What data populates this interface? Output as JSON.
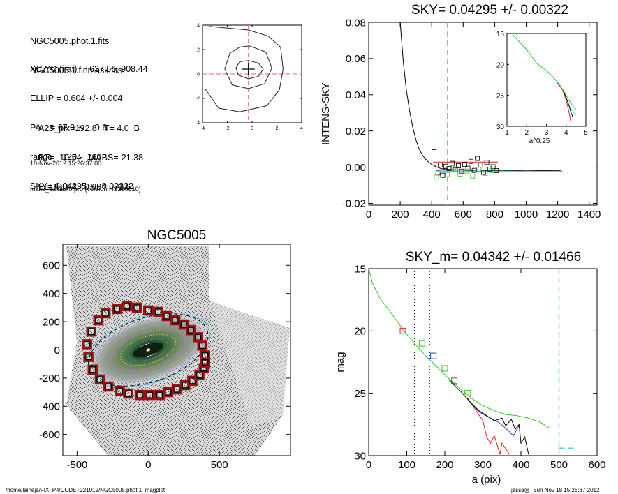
{
  "header_info": {
    "files": [
      "NGC5005.phot.1.fits",
      "NGC5005.1.finmask.fits"
    ],
    "params": [
      "XC,YC (iraf)=   637.55, 908.44",
      "ELLIP = 0.604 +/- 0.004",
      "PA    = 67.0 +/-   0.6",
      "range=  120.-  160.",
      "SKY= 0.04295 +/- 0.00322"
    ],
    "results": [
      "A25_pix=192.8   T= 4.0  B",
      "BT=  10.54   MABS=-21.38",
      "ELLIP, PA= 0.684   71.6"
    ],
    "timestamp": "18-Nov-2012 15:26:37.00",
    "program": "make_datalist0.pro (version HS230610)"
  },
  "footer": {
    "path": "/home/laineja/FIX_P4/UUDET221012/NGC5005.phot.1_magplot",
    "user_time": "jasse@  Sun Nov 18 15:26:37 2012"
  },
  "colors": {
    "dash_red": "#e36a6a",
    "dash_cyan": "#5ad0e8",
    "green": "#35c435",
    "red": "#e02020",
    "blue": "#2040d0",
    "black": "#000000",
    "marker_red": "#a01010"
  },
  "chart_data": [
    {
      "id": "contour",
      "type": "line",
      "title": "",
      "xlim": [
        -4,
        4
      ],
      "ylim": [
        -4,
        4
      ],
      "xticks": [
        "-4",
        "-2",
        "0",
        "2",
        "4"
      ],
      "yticks": [
        "-4",
        "-2",
        "0",
        "2",
        "4"
      ],
      "center": [
        -0.3,
        0.4
      ],
      "contours": [
        [
          [
            -0.3,
            1.1
          ],
          [
            0.5,
            0.9
          ],
          [
            0.9,
            0.4
          ],
          [
            0.5,
            -0.2
          ],
          [
            -0.3,
            -0.4
          ],
          [
            -1.1,
            -0.1
          ],
          [
            -1.3,
            0.5
          ],
          [
            -1.0,
            1.0
          ]
        ],
        [
          [
            -0.2,
            2.3
          ],
          [
            1.1,
            1.8
          ],
          [
            1.6,
            0.5
          ],
          [
            1.0,
            -0.8
          ],
          [
            -0.3,
            -1.2
          ],
          [
            -1.6,
            -0.9
          ],
          [
            -2.2,
            0.4
          ],
          [
            -1.8,
            1.7
          ],
          [
            -1.0,
            2.2
          ]
        ],
        [
          [
            -3.5,
            3.9
          ],
          [
            -0.3,
            3.6
          ],
          [
            1.3,
            3.1
          ],
          [
            2.3,
            2.2
          ],
          [
            2.5,
            0.4
          ],
          [
            2.2,
            -1.3
          ],
          [
            1.2,
            -2.6
          ],
          [
            -1.0,
            -3.1
          ],
          [
            -2.7,
            -2.8
          ],
          [
            -3.8,
            -1.2
          ]
        ]
      ]
    },
    {
      "id": "sky_profile",
      "type": "scatter",
      "title": "SKY= 0.04295 +/- 0.00322",
      "xlabel": "",
      "ylabel": "INTENS-SKY",
      "xlim": [
        0,
        1450
      ],
      "ylim": [
        -0.021,
        0.08
      ],
      "xticks": [
        "0",
        "200",
        "400",
        "600",
        "800",
        "1000",
        "1200",
        "1400"
      ],
      "yticks": [
        "-0.02",
        "0.00",
        "0.02",
        "0.04",
        "0.06",
        "0.08"
      ],
      "vline_x": 500,
      "profile": [
        [
          200,
          0.08
        ],
        [
          220,
          0.058
        ],
        [
          240,
          0.042
        ],
        [
          260,
          0.031
        ],
        [
          280,
          0.022
        ],
        [
          300,
          0.015
        ],
        [
          320,
          0.01
        ],
        [
          340,
          0.0068
        ],
        [
          360,
          0.0045
        ],
        [
          380,
          0.0028
        ],
        [
          400,
          0.0015
        ],
        [
          420,
          0.0006
        ],
        [
          440,
          -0.0002
        ],
        [
          460,
          -0.0008
        ],
        [
          500,
          -0.0012
        ],
        [
          550,
          -0.0014
        ],
        [
          600,
          -0.0016
        ],
        [
          650,
          -0.0018
        ],
        [
          700,
          -0.0015
        ],
        [
          750,
          -0.002
        ],
        [
          800,
          -0.0018
        ],
        [
          850,
          -0.002
        ],
        [
          900,
          -0.0018
        ],
        [
          950,
          -0.0019
        ],
        [
          1000,
          -0.002
        ],
        [
          1100,
          -0.0019
        ],
        [
          1220,
          -0.0018
        ]
      ],
      "squares_black": [
        [
          415,
          0.0085
        ],
        [
          440,
          -0.0032
        ],
        [
          455,
          0.0012
        ],
        [
          470,
          -0.0045
        ],
        [
          490,
          0.0005
        ],
        [
          510,
          -0.0008
        ],
        [
          530,
          0.0021
        ],
        [
          550,
          -0.0016
        ],
        [
          570,
          0.0008
        ],
        [
          590,
          -0.0022
        ],
        [
          610,
          0.0015
        ],
        [
          630,
          -0.0006
        ],
        [
          650,
          0.0032
        ],
        [
          670,
          -0.0018
        ],
        [
          690,
          0.0048
        ],
        [
          710,
          0.0011
        ],
        [
          730,
          -0.0029
        ],
        [
          750,
          0.0026
        ],
        [
          770,
          -0.0011
        ],
        [
          790,
          0.0002
        ],
        [
          810,
          -0.0019
        ]
      ],
      "squares_green": [
        [
          430,
          -0.0055
        ],
        [
          465,
          -0.0025
        ],
        [
          500,
          -0.0041
        ],
        [
          540,
          -0.0009
        ],
        [
          580,
          -0.0038
        ],
        [
          620,
          -0.0022
        ],
        [
          660,
          -0.0049
        ],
        [
          700,
          -0.0012
        ],
        [
          740,
          -0.0035
        ],
        [
          780,
          -0.0018
        ]
      ],
      "red_line": [
        [
          410,
          0.0028
        ],
        [
          820,
          0.0028
        ]
      ],
      "cyan_line": [
        [
          460,
          -0.0022
        ],
        [
          1230,
          -0.0024
        ]
      ],
      "dotted_zero": [
        [
          0,
          0
        ],
        [
          1000,
          0
        ]
      ],
      "inset": {
        "xlabel": "a^0.25",
        "xlim": [
          1,
          5
        ],
        "ylim": [
          30,
          15
        ],
        "xticks": [
          "1",
          "2",
          "3",
          "4",
          "5"
        ],
        "yticks": [
          "15",
          "20",
          "25",
          "30"
        ],
        "green": [
          [
            1.25,
            15.0
          ],
          [
            1.5,
            15.9
          ],
          [
            2.0,
            17.6
          ],
          [
            2.5,
            19.8
          ],
          [
            3.0,
            21.0
          ],
          [
            3.3,
            21.9
          ],
          [
            3.6,
            23.0
          ],
          [
            3.9,
            24.4
          ],
          [
            4.1,
            25.6
          ],
          [
            4.3,
            26.5
          ],
          [
            4.5,
            27.3
          ]
        ],
        "red": [
          [
            3.5,
            22.8
          ],
          [
            3.8,
            24.0
          ],
          [
            4.0,
            25.8
          ],
          [
            4.15,
            27.8
          ],
          [
            4.25,
            29.5
          ]
        ],
        "black": [
          [
            3.9,
            24.6
          ],
          [
            4.1,
            26.2
          ],
          [
            4.25,
            27.8
          ],
          [
            4.35,
            28.6
          ]
        ],
        "cyan": [
          [
            4.0,
            25.9
          ],
          [
            4.3,
            27.4
          ],
          [
            4.5,
            28.2
          ]
        ]
      }
    },
    {
      "id": "galaxy_image",
      "type": "scatter",
      "title": "NGC5005",
      "xlim": [
        -600,
        1000
      ],
      "ylim": [
        -750,
        750
      ],
      "xticks": [
        "-500",
        "0",
        "500"
      ],
      "yticks": [
        "-600",
        "-400",
        "-200",
        "0",
        "200",
        "400",
        "600"
      ],
      "ellipse": {
        "cx": 0,
        "cy": 0,
        "a": 450,
        "b": 235,
        "angle_deg": 18
      },
      "markers": [
        [
          -430,
          40
        ],
        [
          -420,
          -50
        ],
        [
          -400,
          130
        ],
        [
          -390,
          -140
        ],
        [
          -350,
          210
        ],
        [
          -340,
          -210
        ],
        [
          -300,
          260
        ],
        [
          -280,
          -260
        ],
        [
          -220,
          290
        ],
        [
          -200,
          -290
        ],
        [
          -150,
          310
        ],
        [
          -140,
          -310
        ],
        [
          -80,
          300
        ],
        [
          -60,
          -320
        ],
        [
          0,
          280
        ],
        [
          10,
          -320
        ],
        [
          70,
          270
        ],
        [
          80,
          -320
        ],
        [
          130,
          240
        ],
        [
          140,
          -300
        ],
        [
          190,
          210
        ],
        [
          200,
          -280
        ],
        [
          250,
          180
        ],
        [
          260,
          -250
        ],
        [
          300,
          140
        ],
        [
          310,
          -220
        ],
        [
          350,
          90
        ],
        [
          360,
          -180
        ],
        [
          380,
          30
        ],
        [
          390,
          -130
        ],
        [
          400,
          -40
        ],
        [
          400,
          -90
        ]
      ]
    },
    {
      "id": "mag_profile",
      "type": "line",
      "title": "SKY_m=  0.04342 +/- 0.01466",
      "xlabel": "a (pix)",
      "ylabel": "mag",
      "xlim": [
        0,
        600
      ],
      "ylim": [
        30,
        15
      ],
      "xticks": [
        "0",
        "100",
        "200",
        "300",
        "400",
        "500",
        "600"
      ],
      "yticks": [
        "15",
        "20",
        "25",
        "30"
      ],
      "vlines_dotted": [
        120,
        160
      ],
      "vline_cyan": 500,
      "cyan_segment": [
        [
          500,
          29.4
        ],
        [
          540,
          29.4
        ]
      ],
      "green": [
        [
          0,
          15.0
        ],
        [
          10,
          16.2
        ],
        [
          30,
          17.4
        ],
        [
          60,
          18.6
        ],
        [
          90,
          19.9
        ],
        [
          120,
          21.0
        ],
        [
          150,
          22.0
        ],
        [
          180,
          22.9
        ],
        [
          210,
          23.8
        ],
        [
          240,
          24.6
        ],
        [
          270,
          25.4
        ],
        [
          300,
          26.0
        ],
        [
          330,
          26.4
        ],
        [
          360,
          26.7
        ],
        [
          390,
          26.8
        ],
        [
          420,
          27.0
        ],
        [
          450,
          27.3
        ],
        [
          475,
          27.8
        ]
      ],
      "black": [
        [
          210,
          23.9
        ],
        [
          240,
          24.8
        ],
        [
          270,
          25.8
        ],
        [
          290,
          26.4
        ],
        [
          310,
          26.8
        ],
        [
          330,
          27.2
        ],
        [
          350,
          27.0
        ],
        [
          360,
          27.6
        ],
        [
          375,
          27.1
        ],
        [
          385,
          27.9
        ],
        [
          395,
          27.5
        ],
        [
          400,
          29.0
        ],
        [
          410,
          28.5
        ],
        [
          420,
          29.9
        ]
      ],
      "blue": [
        [
          260,
          25.5
        ],
        [
          290,
          26.5
        ],
        [
          320,
          27.0
        ],
        [
          340,
          27.3
        ],
        [
          360,
          27.8
        ],
        [
          380,
          28.4
        ],
        [
          395,
          27.6
        ]
      ],
      "red": [
        [
          260,
          25.4
        ],
        [
          280,
          26.3
        ],
        [
          300,
          27.2
        ],
        [
          310,
          28.5
        ],
        [
          320,
          29.0
        ],
        [
          330,
          28.4
        ],
        [
          345,
          29.9
        ],
        [
          350,
          29.0
        ],
        [
          370,
          29.9
        ]
      ],
      "squares": [
        {
          "x": 90,
          "y": 20.0,
          "color": "red"
        },
        {
          "x": 140,
          "y": 21.0,
          "color": "green"
        },
        {
          "x": 170,
          "y": 22.0,
          "color": "blue"
        },
        {
          "x": 200,
          "y": 23.0,
          "color": "green"
        },
        {
          "x": 225,
          "y": 24.0,
          "color": "red"
        },
        {
          "x": 260,
          "y": 25.0,
          "color": "green"
        }
      ]
    }
  ]
}
